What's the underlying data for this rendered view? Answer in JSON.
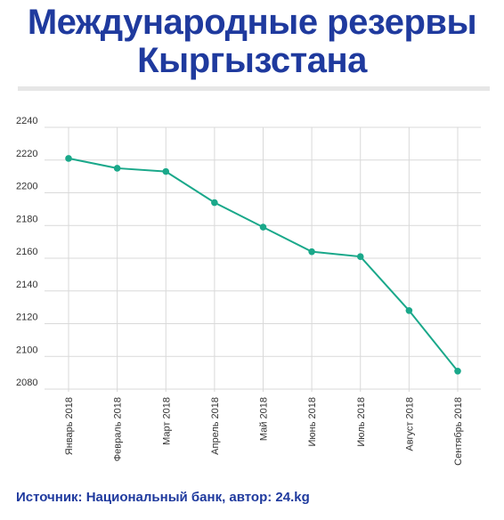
{
  "title": {
    "line1": "Международные резервы",
    "line2": "Кыргызстана"
  },
  "source": "Источник: Национальный банк, автор: 24.kg",
  "colors": {
    "title": "#1f3a9e",
    "line": "#1aa88a",
    "grid": "#d9d9d9"
  },
  "chart_data": {
    "type": "line",
    "categories": [
      "Январь 2018",
      "Февраль 2018",
      "Март 2018",
      "Апрель 2018",
      "Май 2018",
      "Июнь 2018",
      "Июль 2018",
      "Август 2018",
      "Сентябрь 2018"
    ],
    "series": [
      {
        "values": [
          2221,
          2215,
          2213,
          2194,
          2179,
          2164,
          2161,
          2128,
          2091
        ]
      }
    ],
    "ylim": [
      2080,
      2240
    ],
    "yticks": [
      2080,
      2100,
      2120,
      2140,
      2160,
      2180,
      2200,
      2220,
      2240
    ],
    "grid": true,
    "xlabel": "",
    "ylabel": ""
  }
}
